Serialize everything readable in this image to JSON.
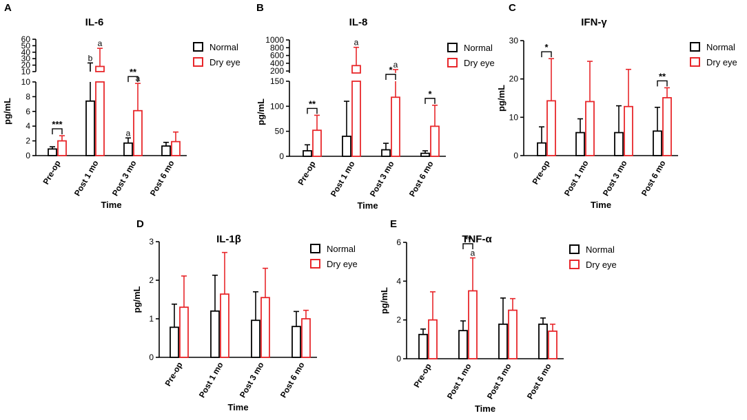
{
  "chart_data": [
    {
      "panel": "A",
      "title": "IL-6",
      "type": "bar",
      "broken_axis": true,
      "ylabel": "pg/mL",
      "xlabel": "Time",
      "categories": [
        "Pre-op",
        "Post 1 mo",
        "Post 3 mo",
        "Post 6 mo"
      ],
      "lower_ylim": [
        0,
        10
      ],
      "lower_ticks": [
        0,
        2,
        4,
        6,
        8,
        10
      ],
      "upper_ylim": [
        10,
        60
      ],
      "upper_ticks": [
        10,
        20,
        30,
        40,
        50,
        60
      ],
      "series": [
        {
          "name": "Normal",
          "color": "#000000",
          "values": [
            0.9,
            7.4,
            1.7,
            1.3
          ],
          "errors": [
            0.3,
            16,
            0.7,
            0.5
          ]
        },
        {
          "name": "Dry eye",
          "color": "#e8262a",
          "values": [
            2.0,
            18,
            6.1,
            1.9
          ],
          "errors": [
            0.7,
            28,
            3.7,
            1.3
          ]
        }
      ],
      "sig": [
        {
          "index": 0,
          "label": "***"
        },
        {
          "index": 2,
          "label": "**"
        }
      ],
      "letters": [
        {
          "index": 1,
          "series": 0,
          "label": "b"
        },
        {
          "index": 1,
          "series": 1,
          "label": "a"
        },
        {
          "index": 2,
          "series": 0,
          "label": "a"
        },
        {
          "index": 2,
          "series": 1,
          "label": "a"
        }
      ]
    },
    {
      "panel": "B",
      "title": "IL-8",
      "type": "bar",
      "broken_axis": true,
      "ylabel": "pg/mL",
      "xlabel": "Time",
      "categories": [
        "Pre-op",
        "Post 1 mo",
        "Post 3 mo",
        "Post 6 mo"
      ],
      "lower_ylim": [
        0,
        150
      ],
      "lower_ticks": [
        0,
        50,
        100,
        150
      ],
      "upper_ylim": [
        150,
        1000
      ],
      "upper_ticks": [
        200,
        400,
        600,
        800,
        1000
      ],
      "series": [
        {
          "name": "Normal",
          "color": "#000000",
          "values": [
            11,
            40,
            13,
            6
          ],
          "errors": [
            12,
            70,
            13,
            5
          ]
        },
        {
          "name": "Dry eye",
          "color": "#e8262a",
          "values": [
            52,
            340,
            118,
            60
          ],
          "errors": [
            30,
            470,
            120,
            42
          ]
        }
      ],
      "sig": [
        {
          "index": 0,
          "label": "**"
        },
        {
          "index": 2,
          "label": "*"
        },
        {
          "index": 3,
          "label": "*"
        }
      ],
      "letters": [
        {
          "index": 1,
          "series": 1,
          "label": "a"
        },
        {
          "index": 2,
          "series": 1,
          "label": "a"
        }
      ]
    },
    {
      "panel": "C",
      "title": "IFN-γ",
      "type": "bar",
      "broken_axis": false,
      "ylabel": "pg/mL",
      "xlabel": "Time",
      "categories": [
        "Pre-op",
        "Post 1 mo",
        "Post 3 mo",
        "Post 6 mo"
      ],
      "ylim": [
        0,
        30
      ],
      "ticks": [
        0,
        10,
        20,
        30
      ],
      "series": [
        {
          "name": "Normal",
          "color": "#000000",
          "values": [
            3.3,
            6.0,
            6.0,
            6.4
          ],
          "errors": [
            4.2,
            3.6,
            7.0,
            6.2
          ]
        },
        {
          "name": "Dry eye",
          "color": "#e8262a",
          "values": [
            14.3,
            14.1,
            12.8,
            15.1
          ],
          "errors": [
            11.0,
            10.5,
            9.7,
            2.6
          ]
        }
      ],
      "sig": [
        {
          "index": 0,
          "label": "*"
        },
        {
          "index": 3,
          "label": "**"
        }
      ],
      "letters": []
    },
    {
      "panel": "D",
      "title": "IL-1β",
      "type": "bar",
      "broken_axis": false,
      "ylabel": "pg/mL",
      "xlabel": "Time",
      "categories": [
        "Pre-op",
        "Post 1 mo",
        "Post 3 mo",
        "Post 6 mo"
      ],
      "ylim": [
        0,
        3
      ],
      "ticks": [
        0,
        1,
        2,
        3
      ],
      "series": [
        {
          "name": "Normal",
          "color": "#000000",
          "values": [
            0.78,
            1.2,
            0.96,
            0.8
          ],
          "errors": [
            0.6,
            0.93,
            0.74,
            0.39
          ]
        },
        {
          "name": "Dry eye",
          "color": "#e8262a",
          "values": [
            1.3,
            1.64,
            1.55,
            1.0
          ],
          "errors": [
            0.81,
            1.08,
            0.76,
            0.22
          ]
        }
      ],
      "sig": [],
      "letters": []
    },
    {
      "panel": "E",
      "title": "TNF-α",
      "type": "bar",
      "broken_axis": false,
      "ylabel": "pg/mL",
      "xlabel": "Time",
      "categories": [
        "Pre-op",
        "Post 1 mo",
        "Post 3 mo",
        "Post 6 mo"
      ],
      "ylim": [
        0,
        6
      ],
      "ticks": [
        0,
        2,
        4,
        6
      ],
      "series": [
        {
          "name": "Normal",
          "color": "#000000",
          "values": [
            1.25,
            1.45,
            1.78,
            1.78
          ],
          "errors": [
            0.28,
            0.5,
            1.35,
            0.32
          ]
        },
        {
          "name": "Dry eye",
          "color": "#e8262a",
          "values": [
            2.0,
            3.5,
            2.5,
            1.42
          ],
          "errors": [
            1.45,
            1.7,
            0.6,
            0.36
          ]
        }
      ],
      "sig": [
        {
          "index": 1,
          "label": "**"
        }
      ],
      "letters": [
        {
          "index": 1,
          "series": 1,
          "label": "a"
        }
      ]
    }
  ]
}
